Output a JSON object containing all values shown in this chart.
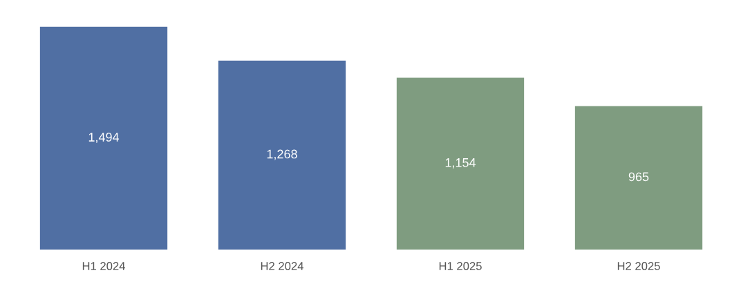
{
  "chart_data": {
    "type": "bar",
    "categories": [
      "H1 2024",
      "H2 2024",
      "H1 2025",
      "H2 2025"
    ],
    "values": [
      1494,
      1268,
      1154,
      965
    ],
    "colors": [
      "#506fa3",
      "#506fa3",
      "#7f9c80",
      "#7f9c80"
    ],
    "value_labels": [
      "1,494",
      "1,268",
      "1,154",
      "965"
    ],
    "grid": false,
    "legend": false
  }
}
